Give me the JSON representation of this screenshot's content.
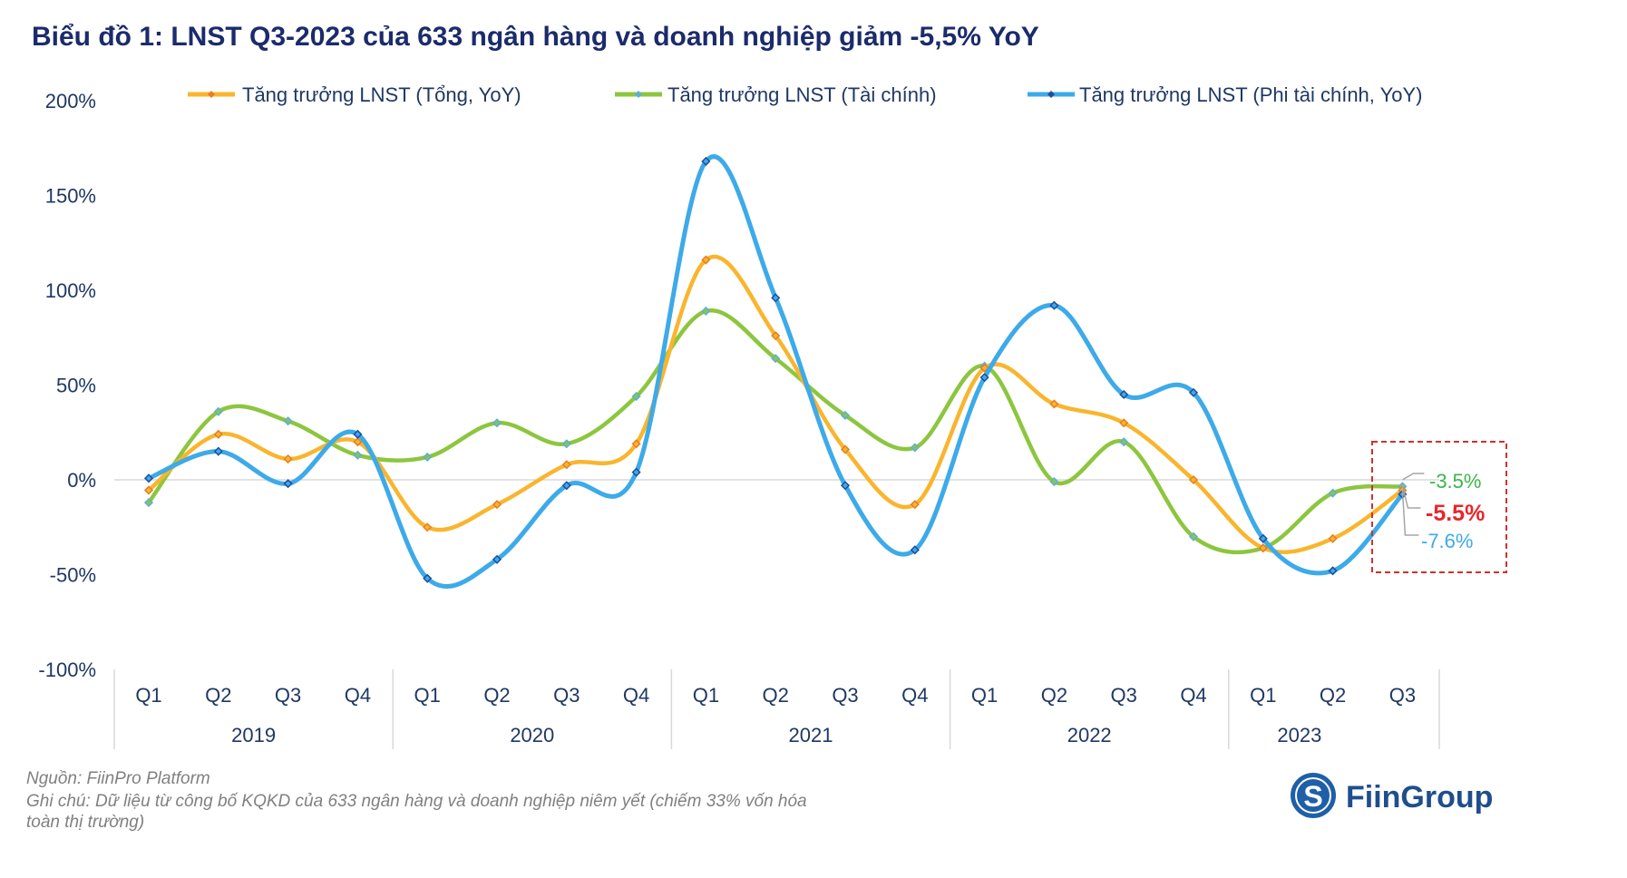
{
  "chart_data": {
    "type": "line",
    "title": "Biểu đồ 1: LNST Q3-2023 của 633 ngân hàng và doanh nghiệp giảm -5,5% YoY",
    "xlabel": "",
    "ylabel": "",
    "ylim": [
      -100,
      200
    ],
    "yticks": [
      "200%",
      "150%",
      "100%",
      "50%",
      "0%",
      "-50%",
      "-100%"
    ],
    "ytick_values": [
      200,
      150,
      100,
      50,
      0,
      -50,
      -100
    ],
    "categories": [
      "Q1",
      "Q2",
      "Q3",
      "Q4",
      "Q1",
      "Q2",
      "Q3",
      "Q4",
      "Q1",
      "Q2",
      "Q3",
      "Q4",
      "Q1",
      "Q2",
      "Q3",
      "Q4",
      "Q1",
      "Q2",
      "Q3"
    ],
    "years": [
      {
        "label": "2019",
        "count": 4
      },
      {
        "label": "2020",
        "count": 4
      },
      {
        "label": "2021",
        "count": 4
      },
      {
        "label": "2022",
        "count": 4
      },
      {
        "label": "2023",
        "count": 3
      }
    ],
    "legend_position": "top",
    "series": [
      {
        "name": "Tăng trưởng LNST (Tổng, YoY)",
        "color": "#F9B52E",
        "marker": "#E67E22",
        "values": [
          -5.5,
          24,
          11,
          20,
          -25,
          -13,
          8,
          19,
          116,
          76,
          16,
          -13,
          59,
          40,
          30,
          0,
          -36,
          -31,
          -5.5
        ]
      },
      {
        "name": "Tăng trưởng LNST (Tài chính)",
        "color": "#8CC63F",
        "marker": "#5DADE2",
        "values": [
          -12,
          36,
          31,
          13,
          12,
          30,
          19,
          44,
          89,
          64,
          34,
          17,
          60,
          -1,
          20,
          -30,
          -36,
          -7,
          -3.5
        ]
      },
      {
        "name": "Tăng trưởng LNST (Phi tài chính, YoY)",
        "color": "#3DAAE9",
        "marker": "#1F4E9C",
        "values": [
          0.8,
          15,
          -2,
          24,
          -52,
          -42,
          -3,
          4,
          168,
          96,
          -3,
          -37,
          54,
          92,
          45,
          46,
          -31,
          -48,
          -7.6
        ]
      }
    ],
    "annotations": [
      {
        "text": "-3.5%",
        "color": "#3BB54A"
      },
      {
        "text": "-5.5%",
        "color": "#E8262A"
      },
      {
        "text": "-7.6%",
        "color": "#3DAAE9"
      }
    ]
  },
  "footer": {
    "source": "Nguồn: FiinPro Platform",
    "note_line1": "Ghi chú: Dữ liệu từ công bố KQKD của 633 ngân hàng và doanh nghiệp niêm yết (chiếm 33% vốn hóa",
    "note_line2": "toàn thị trường)"
  },
  "logo": {
    "text": "FiinGroup"
  }
}
